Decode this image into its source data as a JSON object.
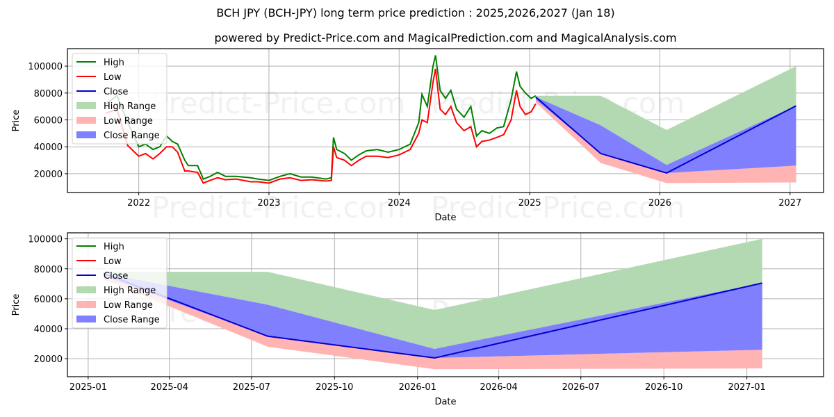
{
  "header": {
    "title": "BCH JPY (BCH-JPY) long term price prediction : 2025,2026,2027 (Jan 18)",
    "subtitle": "powered by Predict-Price.com and MagicalPrediction.com and MagicalAnalysis.com"
  },
  "watermark": "Predict-Price.com",
  "colors": {
    "high": "#008000",
    "low": "#ff0000",
    "close": "#0000cd",
    "high_range": "#b3d9b3",
    "low_range": "#ffb3b3",
    "close_range": "#8080ff",
    "grid": "#b0b0b0"
  },
  "legend": [
    "High",
    "Low",
    "Close",
    "High Range",
    "Low Range",
    "Close Range"
  ],
  "chart_data": [
    {
      "type": "line",
      "title": "BCH JPY (BCH-JPY) long term price prediction : 2025,2026,2027 (Jan 18)",
      "xlabel": "Date",
      "ylabel": "Price",
      "ylim": [
        6000,
        113000
      ],
      "xlim": [
        "2021-06-15",
        "2027-04-05"
      ],
      "x_ticks": [
        "2022",
        "2023",
        "2024",
        "2025",
        "2026",
        "2027"
      ],
      "y_ticks": [
        20000,
        40000,
        60000,
        80000,
        100000
      ],
      "grid": true,
      "legend_position": "upper left",
      "history": {
        "x": [
          "2021-10-01",
          "2021-11-01",
          "2021-12-01",
          "2022-01-01",
          "2022-01-20",
          "2022-02-10",
          "2022-03-01",
          "2022-03-20",
          "2022-04-05",
          "2022-04-20",
          "2022-05-10",
          "2022-05-20",
          "2022-06-15",
          "2022-07-01",
          "2022-07-20",
          "2022-08-10",
          "2022-09-01",
          "2022-10-01",
          "2022-11-10",
          "2022-12-01",
          "2023-01-01",
          "2023-02-01",
          "2023-03-01",
          "2023-04-01",
          "2023-05-01",
          "2023-06-10",
          "2023-06-25",
          "2023-07-01",
          "2023-07-10",
          "2023-08-01",
          "2023-08-20",
          "2023-09-10",
          "2023-10-01",
          "2023-11-01",
          "2023-12-01",
          "2024-01-01",
          "2024-02-01",
          "2024-02-25",
          "2024-03-05",
          "2024-03-20",
          "2024-04-05",
          "2024-04-12",
          "2024-04-25",
          "2024-05-10",
          "2024-05-25",
          "2024-06-10",
          "2024-07-01",
          "2024-07-20",
          "2024-08-05",
          "2024-08-20",
          "2024-09-10",
          "2024-10-01",
          "2024-10-20",
          "2024-11-10",
          "2024-11-25",
          "2024-12-05",
          "2024-12-20",
          "2025-01-05",
          "2025-01-18"
        ],
        "high": [
          72000,
          78000,
          58000,
          40000,
          42000,
          38000,
          40000,
          48000,
          44000,
          42000,
          30000,
          26000,
          26000,
          16000,
          18000,
          21000,
          18000,
          18000,
          17000,
          16000,
          15000,
          18000,
          20000,
          17500,
          17500,
          16000,
          17000,
          47000,
          38000,
          35000,
          30000,
          34000,
          37000,
          38000,
          36000,
          38000,
          42000,
          58000,
          79000,
          70000,
          100000,
          108000,
          82000,
          76000,
          82000,
          68000,
          62000,
          70000,
          48000,
          52000,
          50000,
          54000,
          55000,
          75000,
          96000,
          85000,
          80000,
          76000,
          78000
        ],
        "low": [
          65000,
          68000,
          41000,
          33000,
          35000,
          31000,
          35000,
          40000,
          40000,
          36000,
          22000,
          22000,
          21000,
          13000,
          15000,
          17000,
          15500,
          16000,
          14000,
          14000,
          13000,
          16000,
          17000,
          15000,
          15500,
          14500,
          15000,
          40000,
          32000,
          30000,
          26000,
          30000,
          33000,
          33000,
          32000,
          34000,
          38000,
          50000,
          60000,
          58000,
          88000,
          98000,
          68000,
          64000,
          70000,
          58000,
          52000,
          55000,
          40000,
          44000,
          45000,
          47000,
          49000,
          60000,
          82000,
          70000,
          64000,
          66000,
          72000
        ]
      },
      "forecast": {
        "x": [
          "2025-01-18",
          "2025-07-19",
          "2026-01-20",
          "2027-01-18"
        ],
        "high_range_top": [
          78000,
          78000,
          52500,
          100000
        ],
        "high_range_bottom": [
          77000,
          56000,
          26500,
          55000
        ],
        "close": [
          77000,
          35000,
          20500,
          70500
        ],
        "close_range_top": [
          77000,
          56000,
          26500,
          70500
        ],
        "close_range_bottom": [
          75000,
          35000,
          20500,
          26000
        ],
        "low_range_top": [
          75000,
          35000,
          20500,
          26000
        ],
        "low_range_bottom": [
          73000,
          28000,
          13000,
          13500
        ]
      }
    },
    {
      "type": "line",
      "title": "",
      "xlabel": "Date",
      "ylabel": "Price",
      "ylim": [
        8000,
        104000
      ],
      "xlim": [
        "2024-12-09",
        "2027-03-27"
      ],
      "x_ticks": [
        "2025-01",
        "2025-04",
        "2025-07",
        "2025-10",
        "2026-01",
        "2026-04",
        "2026-07",
        "2026-10",
        "2027-01"
      ],
      "y_ticks": [
        20000,
        40000,
        60000,
        80000,
        100000
      ],
      "grid": true,
      "legend_position": "upper left",
      "forecast": {
        "x": [
          "2025-01-18",
          "2025-07-19",
          "2026-01-20",
          "2027-01-18"
        ],
        "high_range_top": [
          78000,
          78000,
          52500,
          100000
        ],
        "high_range_bottom": [
          77000,
          56000,
          26500,
          55000
        ],
        "close": [
          77000,
          35000,
          20500,
          70500
        ],
        "close_range_top": [
          77000,
          56000,
          26500,
          70500
        ],
        "close_range_bottom": [
          75000,
          35000,
          20500,
          26000
        ],
        "low_range_top": [
          75000,
          35000,
          20500,
          26000
        ],
        "low_range_bottom": [
          73000,
          28000,
          13000,
          13500
        ]
      }
    }
  ]
}
